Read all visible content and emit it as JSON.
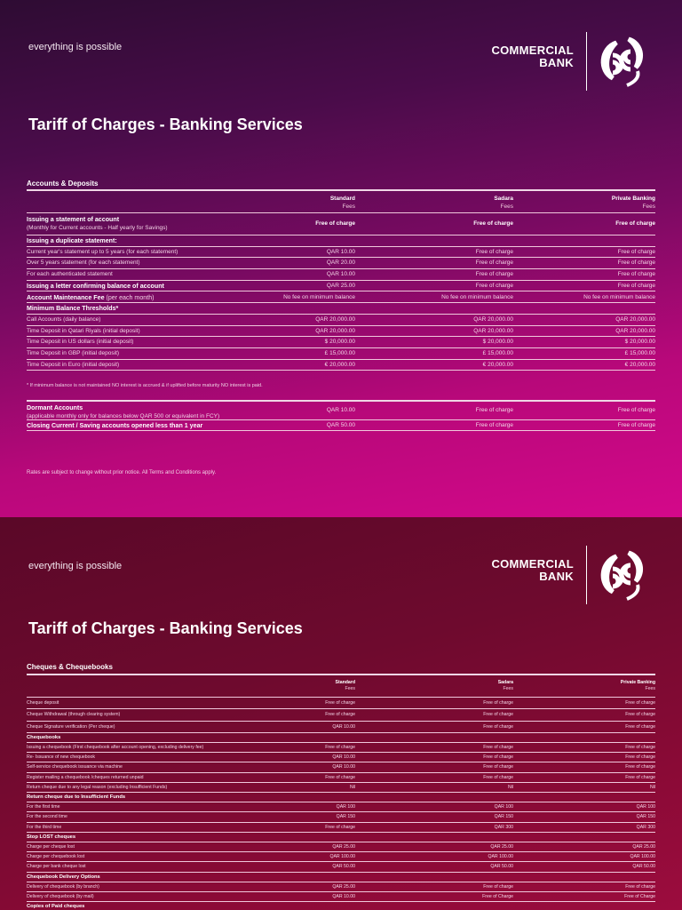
{
  "brand": {
    "tagline": "everything is possible",
    "logo_line1": "COMMERCIAL",
    "logo_line2": "BANK"
  },
  "page1": {
    "title": "Tariff of Charges - Banking Services",
    "section": "Accounts & Deposits",
    "columns": [
      {
        "name": "Standard",
        "sub": "Fees"
      },
      {
        "name": "Sadara",
        "sub": "Fees"
      },
      {
        "name": "Private Banking",
        "sub": "Fees"
      }
    ],
    "rows": [
      {
        "label": "Issuing a statement of account",
        "sub": "(Monthly for Current accounts - Half yearly for Savings)",
        "values": [
          "Free of charge",
          "Free of charge",
          "Free of charge"
        ],
        "bold": true
      },
      {
        "label": "Issuing a duplicate statement:",
        "values": [],
        "bold": true
      },
      {
        "label": "Current year's statement up to 5 years (for each statement)",
        "values": [
          "QAR 10.00",
          "Free of charge",
          "Free of charge"
        ]
      },
      {
        "label": "Over 5 years statement (for each statement)",
        "values": [
          "QAR 20.00",
          "Free of charge",
          "Free of charge"
        ]
      },
      {
        "label": "For each authenticated statement",
        "values": [
          "QAR 10.00",
          "Free of charge",
          "Free of charge"
        ]
      },
      {
        "label": "Issuing a letter confirming balance of account",
        "values": [
          "QAR 25.00",
          "Free of charge",
          "Free of charge"
        ],
        "bold": true
      },
      {
        "label": "Account Maintenance Fee",
        "inline": "(per each month)",
        "values": [
          "No fee on minimum balance",
          "No fee on minimum balance",
          "No fee on minimum balance"
        ],
        "bold": true
      },
      {
        "label": "Minimum Balance Thresholds*",
        "values": [],
        "bold": true
      },
      {
        "label": "Call Accounts (daily balance)",
        "values": [
          "QAR 20,000.00",
          "QAR 20,000.00",
          "QAR 20,000.00"
        ]
      },
      {
        "label": "Time Deposit in Qatari Riyals (initial deposit)",
        "values": [
          "QAR 20,000.00",
          "QAR 20,000.00",
          "QAR 20,000.00"
        ]
      },
      {
        "label": "Time Deposit in US dollars (initial deposit)",
        "values": [
          "$ 20,000.00",
          "$ 20,000.00",
          "$ 20,000.00"
        ]
      },
      {
        "label": "Time Deposit in GBP (initial deposit)",
        "values": [
          "£ 15,000.00",
          "£ 15,000.00",
          "£ 15,000.00"
        ]
      },
      {
        "label": "Time Deposit in Euro (initial deposit)",
        "values": [
          "€ 20,000.00",
          "€ 20,000.00",
          "€ 20,000.00"
        ]
      }
    ],
    "footnote": "* If minimum balance is not maintained NO interest is accrued & if uplifted before maturity NO interest is paid.",
    "rows2": [
      {
        "label": "Dormant Accounts",
        "sub": "(applicable monthly only for balances below QAR 500 or equivalent in FCY)",
        "values": [
          "QAR 10.00",
          "Free of charge",
          "Free of charge"
        ],
        "bold": true
      },
      {
        "label": "Closing Current / Saving accounts opened less than 1 year",
        "values": [
          "QAR 50.00",
          "Free of charge",
          "Free of charge"
        ],
        "bold": true
      }
    ],
    "disclaimer": "Rates are subject to change without prior notice. All Terms and Conditions apply."
  },
  "page2": {
    "title": "Tariff of Charges - Banking Services",
    "section": "Cheques & Chequebooks",
    "columns": [
      {
        "name": "Standard",
        "sub": "Fees"
      },
      {
        "name": "Sadara",
        "sub": "Fees"
      },
      {
        "name": "Private Banking",
        "sub": "Fees"
      }
    ],
    "rows": [
      {
        "label": "Cheque deposit",
        "values": [
          "Free of charge",
          "Free of charge",
          "Free of charge"
        ]
      },
      {
        "label": "Cheque Withdrawal (through clearing system)",
        "values": [
          "Free of charge",
          "Free of charge",
          "Free of charge"
        ]
      },
      {
        "label": "Cheque Signature verification (Per cheque)",
        "values": [
          "QAR 10.00",
          "Free of charge",
          "Free of charge"
        ]
      },
      {
        "label": "Chequebooks",
        "values": [],
        "bold": true
      },
      {
        "label": "Issuing a chequebook (First chequebook after account opening, excluding delivery fee)",
        "values": [
          "Free of charge",
          "Free of charge",
          "Free of charge"
        ]
      },
      {
        "label": "Re- Issuance of new chequebook",
        "values": [
          "QAR 10.00",
          "Free of charge",
          "Free of charge"
        ]
      },
      {
        "label": "Self-service chequebook issuance via machine",
        "values": [
          "QAR 10.00",
          "Free of charge",
          "Free of charge"
        ]
      },
      {
        "label": "Register mailing a chequebook /cheques  returned unpaid",
        "values": [
          "Free of charge",
          "Free of charge",
          "Free of charge"
        ]
      },
      {
        "label": "Return cheque due to any legal reason (excluding Insufficient Funds)",
        "values": [
          "Nil",
          "Nil",
          "Nil"
        ]
      },
      {
        "label": "Return cheque due to Insufficient Funds",
        "values": [],
        "bold": true
      },
      {
        "label": "For the first time",
        "values": [
          "QAR 100",
          "QAR 100",
          "QAR 100"
        ]
      },
      {
        "label": "For the  second time",
        "values": [
          "QAR 150",
          "QAR 150",
          "QAR 150"
        ]
      },
      {
        "label": "For the third time",
        "values": [
          "Free of charge",
          "QAR 300",
          "QAR 300"
        ]
      },
      {
        "label": "Stop LOST cheques",
        "values": [],
        "bold": true
      },
      {
        "label": "Charge per cheque lost",
        "values": [
          "QAR 25.00",
          "QAR 25.00",
          "QAR 25.00"
        ]
      },
      {
        "label": "Charge per chequebook lost",
        "values": [
          "QAR 100.00",
          "QAR 100.00",
          "QAR 100.00"
        ]
      },
      {
        "label": "Charge per bank cheque lost",
        "values": [
          "QAR 50.00",
          "QAR 50.00",
          "QAR 50.00"
        ]
      },
      {
        "label": "Chequebook Delivery Options",
        "values": [],
        "bold": true
      },
      {
        "label": "Delivery of chequebook (by branch)",
        "values": [
          "QAR 25.00",
          "Free of charge",
          "Free of charge"
        ]
      },
      {
        "label": "Delivery of chequebook (by mail)",
        "values": [
          "QAR 10.00",
          "Free of Charge",
          "Free of Charge"
        ]
      },
      {
        "label": "Copies of Paid cheques",
        "values": [],
        "bold": true
      }
    ]
  },
  "colors": {
    "page1_top": "#2e0c33",
    "page1_bottom": "#d4088a",
    "page2": "#7a0a32"
  }
}
